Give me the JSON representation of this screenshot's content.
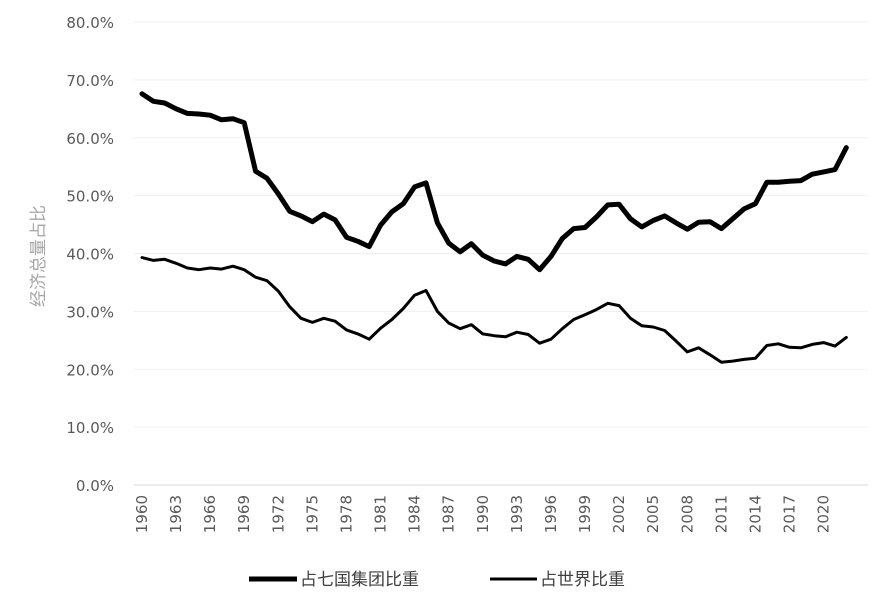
{
  "chart_data": {
    "type": "line",
    "title": "",
    "xlabel": "",
    "ylabel": "经济总量占比",
    "ylim": [
      0,
      80
    ],
    "yticks": [
      "0.0%",
      "10.0%",
      "20.0%",
      "30.0%",
      "40.0%",
      "50.0%",
      "60.0%",
      "70.0%",
      "80.0%"
    ],
    "xtick_labels": [
      "1960",
      "1963",
      "1966",
      "1969",
      "1972",
      "1975",
      "1978",
      "1981",
      "1984",
      "1987",
      "1990",
      "1993",
      "1996",
      "1999",
      "2002",
      "2005",
      "2008",
      "2011",
      "2014",
      "2017",
      "2020"
    ],
    "grid": true,
    "legend_position": "bottom",
    "x": [
      1960,
      1961,
      1962,
      1963,
      1964,
      1965,
      1966,
      1967,
      1968,
      1969,
      1970,
      1971,
      1972,
      1973,
      1974,
      1975,
      1976,
      1977,
      1978,
      1979,
      1980,
      1981,
      1982,
      1983,
      1984,
      1985,
      1986,
      1987,
      1988,
      1989,
      1990,
      1991,
      1992,
      1993,
      1994,
      1995,
      1996,
      1997,
      1998,
      1999,
      2000,
      2001,
      2002,
      2003,
      2004,
      2005,
      2006,
      2007,
      2008,
      2009,
      2010,
      2011,
      2012,
      2013,
      2014,
      2015,
      2016,
      2017,
      2018,
      2019,
      2020,
      2021,
      2022
    ],
    "series": [
      {
        "name": "占七国集团比重",
        "color": "#000000",
        "values": [
          67.6,
          66.3,
          66.0,
          65.0,
          64.2,
          64.1,
          63.9,
          63.1,
          63.3,
          62.6,
          54.2,
          53.0,
          50.3,
          47.3,
          46.5,
          45.5,
          46.8,
          45.8,
          42.8,
          42.1,
          41.2,
          44.9,
          47.2,
          48.6,
          51.5,
          52.2,
          45.3,
          41.8,
          40.3,
          41.7,
          39.7,
          38.7,
          38.2,
          39.5,
          39.0,
          37.2,
          39.5,
          42.6,
          44.3,
          44.5,
          46.3,
          48.4,
          48.5,
          46.0,
          44.6,
          45.7,
          46.5,
          45.3,
          44.2,
          45.4,
          45.5,
          44.3,
          46.0,
          47.7,
          48.6,
          52.3,
          52.3,
          52.5,
          52.6,
          53.7,
          54.1,
          54.5,
          58.3
        ]
      },
      {
        "name": "占世界比重",
        "color": "#000000",
        "values": [
          39.3,
          38.8,
          39.0,
          38.3,
          37.5,
          37.2,
          37.5,
          37.3,
          37.8,
          37.2,
          35.9,
          35.3,
          33.5,
          30.8,
          28.8,
          28.1,
          28.8,
          28.3,
          26.8,
          26.1,
          25.2,
          27.1,
          28.6,
          30.5,
          32.8,
          33.6,
          30.0,
          28.0,
          27.0,
          27.7,
          26.1,
          25.8,
          25.6,
          26.4,
          26.0,
          24.5,
          25.2,
          27.0,
          28.6,
          29.4,
          30.3,
          31.4,
          31.0,
          28.8,
          27.5,
          27.3,
          26.7,
          24.9,
          23.0,
          23.7,
          22.5,
          21.2,
          21.4,
          21.7,
          21.9,
          24.1,
          24.4,
          23.8,
          23.7,
          24.3,
          24.6,
          24.0,
          25.5
        ]
      }
    ]
  }
}
